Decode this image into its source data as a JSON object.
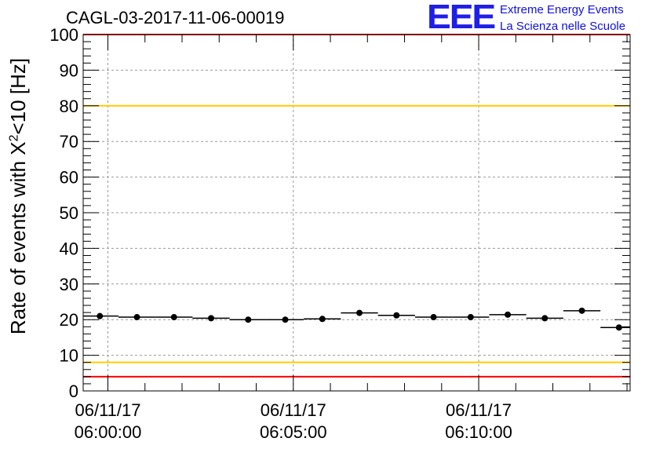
{
  "header": {
    "run_title": "CAGL-03-2017-11-06-00019",
    "logo_mark": "EEE",
    "logo_line1": "Extreme Energy Events",
    "logo_line2": "La Scienza nelle Scuole",
    "logo_color": "#1f1fe6"
  },
  "chart_data": {
    "type": "scatter",
    "title": "CAGL-03-2017-11-06-00019",
    "ylabel_prefix": "Rate of events with X",
    "ylabel_sup": "2",
    "ylabel_suffix": "<10 [Hz]",
    "ylim": [
      0,
      100
    ],
    "y_ticks": [
      0,
      10,
      20,
      30,
      40,
      50,
      60,
      70,
      80,
      90,
      100
    ],
    "xlim_seconds": [
      -40,
      845
    ],
    "x_ticks": [
      {
        "t": 0,
        "date": "06/11/17",
        "time": "06:00:00"
      },
      {
        "t": 300,
        "date": "06/11/17",
        "time": "06:05:00"
      },
      {
        "t": 600,
        "date": "06/11/17",
        "time": "06:10:00"
      }
    ],
    "grid": true,
    "bin_width_seconds": 60,
    "points": [
      {
        "t": -13,
        "y": 21.0
      },
      {
        "t": 47,
        "y": 20.7
      },
      {
        "t": 107,
        "y": 20.7
      },
      {
        "t": 167,
        "y": 20.4
      },
      {
        "t": 227,
        "y": 20.0
      },
      {
        "t": 287,
        "y": 20.0
      },
      {
        "t": 347,
        "y": 20.2
      },
      {
        "t": 407,
        "y": 21.9
      },
      {
        "t": 467,
        "y": 21.2
      },
      {
        "t": 527,
        "y": 20.7
      },
      {
        "t": 587,
        "y": 20.7
      },
      {
        "t": 647,
        "y": 21.4
      },
      {
        "t": 707,
        "y": 20.4
      },
      {
        "t": 767,
        "y": 22.5
      },
      {
        "t": 827,
        "y": 17.8
      }
    ],
    "reference_lines": [
      {
        "y": 100,
        "color": "#ff0000"
      },
      {
        "y": 80,
        "color": "#ffcc00"
      },
      {
        "y": 8,
        "color": "#ffcc00"
      },
      {
        "y": 4,
        "color": "#ff0000"
      }
    ]
  }
}
